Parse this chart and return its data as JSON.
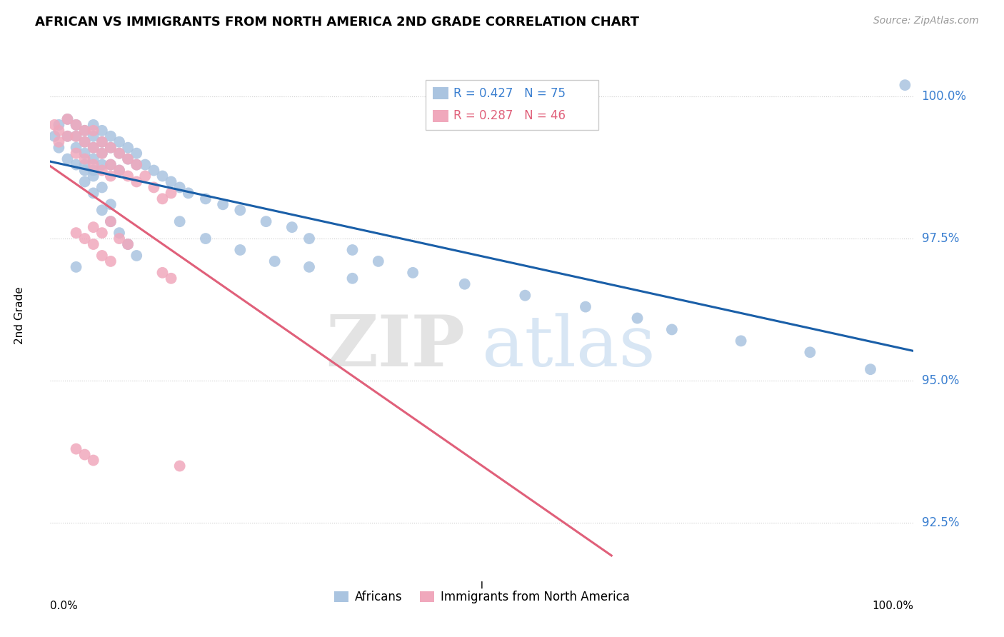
{
  "title": "AFRICAN VS IMMIGRANTS FROM NORTH AMERICA 2ND GRADE CORRELATION CHART",
  "source": "Source: ZipAtlas.com",
  "ylabel": "2nd Grade",
  "yticks": [
    92.5,
    95.0,
    97.5,
    100.0
  ],
  "ytick_labels": [
    "92.5%",
    "95.0%",
    "97.5%",
    "100.0%"
  ],
  "xlim": [
    0.0,
    1.0
  ],
  "ylim": [
    91.5,
    100.8
  ],
  "blue_R": 0.427,
  "blue_N": 75,
  "pink_R": 0.287,
  "pink_N": 46,
  "blue_color": "#aac4e0",
  "pink_color": "#f0a8bc",
  "blue_line_color": "#1a5fa8",
  "pink_line_color": "#e0607a",
  "blue_legend_text_color": "#3a7fd0",
  "pink_legend_text_color": "#e0607a",
  "watermark_zip": "ZIP",
  "watermark_atlas": "atlas",
  "blue_scatter_x": [
    0.005,
    0.01,
    0.01,
    0.02,
    0.02,
    0.02,
    0.03,
    0.03,
    0.03,
    0.03,
    0.04,
    0.04,
    0.04,
    0.04,
    0.05,
    0.05,
    0.05,
    0.05,
    0.05,
    0.06,
    0.06,
    0.06,
    0.06,
    0.07,
    0.07,
    0.07,
    0.08,
    0.08,
    0.08,
    0.09,
    0.09,
    0.1,
    0.1,
    0.11,
    0.12,
    0.13,
    0.14,
    0.15,
    0.16,
    0.18,
    0.2,
    0.22,
    0.25,
    0.28,
    0.3,
    0.35,
    0.38,
    0.42,
    0.48,
    0.55,
    0.62,
    0.68,
    0.72,
    0.8,
    0.88,
    0.95,
    0.99,
    0.15,
    0.18,
    0.22,
    0.26,
    0.3,
    0.35,
    0.04,
    0.05,
    0.06,
    0.07,
    0.08,
    0.09,
    0.1,
    0.03,
    0.04,
    0.05,
    0.06,
    0.07
  ],
  "blue_scatter_y": [
    99.3,
    99.5,
    99.1,
    99.6,
    99.3,
    98.9,
    99.5,
    99.3,
    99.1,
    98.8,
    99.4,
    99.2,
    99.0,
    98.7,
    99.5,
    99.3,
    99.1,
    98.9,
    98.7,
    99.4,
    99.2,
    99.0,
    98.8,
    99.3,
    99.1,
    98.8,
    99.2,
    99.0,
    98.7,
    99.1,
    98.9,
    99.0,
    98.8,
    98.8,
    98.7,
    98.6,
    98.5,
    98.4,
    98.3,
    98.2,
    98.1,
    98.0,
    97.8,
    97.7,
    97.5,
    97.3,
    97.1,
    96.9,
    96.7,
    96.5,
    96.3,
    96.1,
    95.9,
    95.7,
    95.5,
    95.2,
    100.2,
    97.8,
    97.5,
    97.3,
    97.1,
    97.0,
    96.8,
    98.5,
    98.3,
    98.0,
    97.8,
    97.6,
    97.4,
    97.2,
    97.0,
    98.8,
    98.6,
    98.4,
    98.1
  ],
  "pink_scatter_x": [
    0.005,
    0.01,
    0.01,
    0.02,
    0.02,
    0.03,
    0.03,
    0.03,
    0.04,
    0.04,
    0.04,
    0.05,
    0.05,
    0.05,
    0.06,
    0.06,
    0.06,
    0.07,
    0.07,
    0.07,
    0.08,
    0.08,
    0.09,
    0.09,
    0.1,
    0.1,
    0.11,
    0.12,
    0.13,
    0.14,
    0.05,
    0.06,
    0.07,
    0.08,
    0.09,
    0.03,
    0.04,
    0.05,
    0.06,
    0.07,
    0.03,
    0.04,
    0.05,
    0.13,
    0.14,
    0.15
  ],
  "pink_scatter_y": [
    99.5,
    99.4,
    99.2,
    99.6,
    99.3,
    99.5,
    99.3,
    99.0,
    99.4,
    99.2,
    98.9,
    99.4,
    99.1,
    98.8,
    99.2,
    99.0,
    98.7,
    99.1,
    98.8,
    98.6,
    99.0,
    98.7,
    98.9,
    98.6,
    98.8,
    98.5,
    98.6,
    98.4,
    98.2,
    98.3,
    97.7,
    97.6,
    97.8,
    97.5,
    97.4,
    97.6,
    97.5,
    97.4,
    97.2,
    97.1,
    93.8,
    93.7,
    93.6,
    96.9,
    96.8,
    93.5
  ]
}
